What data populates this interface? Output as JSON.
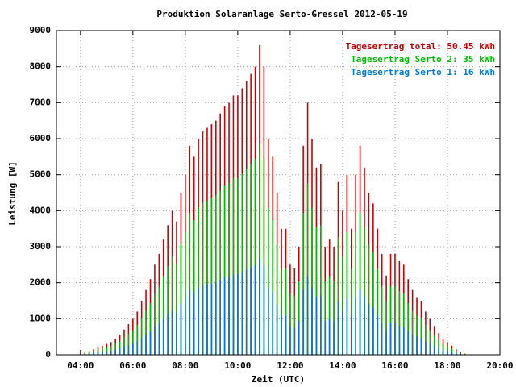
{
  "chart_data": {
    "type": "impulse",
    "title": "Produktion Solaranlage Serto-Gressel 2012-05-19",
    "xlabel": "Zeit (UTC)",
    "ylabel": "Leistung [W]",
    "x": [
      "04:00",
      "04:10",
      "04:20",
      "04:30",
      "04:40",
      "04:50",
      "05:00",
      "05:10",
      "05:20",
      "05:30",
      "05:40",
      "05:50",
      "06:00",
      "06:10",
      "06:20",
      "06:30",
      "06:40",
      "06:50",
      "07:00",
      "07:10",
      "07:20",
      "07:30",
      "07:40",
      "07:50",
      "08:00",
      "08:10",
      "08:20",
      "08:30",
      "08:40",
      "08:50",
      "09:00",
      "09:10",
      "09:20",
      "09:30",
      "09:40",
      "09:50",
      "10:00",
      "10:10",
      "10:20",
      "10:30",
      "10:40",
      "10:50",
      "11:00",
      "11:10",
      "11:20",
      "11:30",
      "11:40",
      "11:50",
      "12:00",
      "12:10",
      "12:20",
      "12:30",
      "12:40",
      "12:50",
      "13:00",
      "13:10",
      "13:20",
      "13:30",
      "13:40",
      "13:50",
      "14:00",
      "14:10",
      "14:20",
      "14:30",
      "14:40",
      "14:50",
      "15:00",
      "15:10",
      "15:20",
      "15:30",
      "15:40",
      "15:50",
      "16:00",
      "16:10",
      "16:20",
      "16:30",
      "16:40",
      "16:50",
      "17:00",
      "17:10",
      "17:20",
      "17:30",
      "17:40",
      "17:50",
      "18:00",
      "18:10",
      "18:20",
      "18:30",
      "18:40"
    ],
    "series": [
      {
        "name": "Tagesertrag total: 50.45 kWh",
        "color": "#cc0000",
        "values": [
          20,
          60,
          100,
          150,
          200,
          250,
          300,
          350,
          450,
          550,
          700,
          850,
          1000,
          1200,
          1500,
          1800,
          2100,
          2500,
          2800,
          3200,
          3600,
          4000,
          3700,
          4500,
          5000,
          5800,
          5500,
          6000,
          6200,
          6300,
          6400,
          6500,
          6700,
          6900,
          7000,
          7200,
          7200,
          7400,
          7600,
          7800,
          8000,
          8600,
          8000,
          6000,
          5500,
          4500,
          3500,
          3500,
          2500,
          2400,
          3000,
          5800,
          7000,
          6000,
          5200,
          5300,
          3000,
          3200,
          3000,
          4800,
          4000,
          5000,
          3500,
          5000,
          5800,
          5200,
          4500,
          4200,
          3500,
          2800,
          2200,
          2800,
          2800,
          2600,
          2500,
          2100,
          1800,
          1600,
          1500,
          1200,
          1000,
          800,
          600,
          450,
          350,
          250,
          150,
          80,
          30
        ]
      },
      {
        "name": "Tagesertrag Serto 2: 35 kWh",
        "color": "#00bb00",
        "values": [
          14,
          40,
          70,
          100,
          140,
          170,
          200,
          240,
          310,
          370,
          480,
          580,
          680,
          820,
          1020,
          1220,
          1430,
          1700,
          1900,
          2180,
          2450,
          2720,
          2520,
          3060,
          3400,
          3940,
          3740,
          4080,
          4220,
          4280,
          4350,
          4420,
          4560,
          4690,
          4760,
          4900,
          4900,
          5030,
          5170,
          5300,
          5440,
          5850,
          5440,
          4080,
          3740,
          3060,
          2380,
          2380,
          1700,
          1630,
          2040,
          3940,
          4760,
          4080,
          3540,
          3600,
          2040,
          2180,
          2040,
          3260,
          2720,
          3400,
          2380,
          3400,
          3940,
          3540,
          3060,
          2860,
          2380,
          1900,
          1500,
          1900,
          1900,
          1770,
          1700,
          1430,
          1220,
          1090,
          1020,
          820,
          680,
          540,
          410,
          310,
          240,
          170,
          100,
          54,
          20
        ]
      },
      {
        "name": "Tagesertrag Serto 1: 16 kWh",
        "color": "#0077dd",
        "values": [
          6,
          20,
          30,
          50,
          60,
          80,
          90,
          110,
          140,
          170,
          220,
          260,
          310,
          370,
          470,
          560,
          650,
          780,
          870,
          990,
          1120,
          1240,
          1150,
          1400,
          1550,
          1800,
          1710,
          1860,
          1920,
          1950,
          1980,
          2020,
          2080,
          2140,
          2170,
          2230,
          2230,
          2290,
          2360,
          2420,
          2480,
          2670,
          2480,
          1860,
          1710,
          1400,
          1090,
          1090,
          780,
          740,
          930,
          1800,
          2170,
          1860,
          1610,
          1640,
          930,
          990,
          930,
          1490,
          1240,
          1550,
          1090,
          1550,
          1800,
          1610,
          1400,
          1300,
          1090,
          870,
          680,
          870,
          870,
          810,
          780,
          650,
          560,
          500,
          470,
          370,
          310,
          250,
          190,
          140,
          110,
          80,
          50,
          25,
          9
        ]
      }
    ],
    "xlim": [
      "03:05",
      "20:00"
    ],
    "xticks": [
      "04:00",
      "06:00",
      "08:00",
      "10:00",
      "12:00",
      "14:00",
      "16:00",
      "18:00",
      "20:00"
    ],
    "ylim": [
      0,
      9000
    ],
    "yticks": [
      0,
      1000,
      2000,
      3000,
      4000,
      5000,
      6000,
      7000,
      8000,
      9000
    ],
    "grid": true,
    "legend": "top-right"
  }
}
